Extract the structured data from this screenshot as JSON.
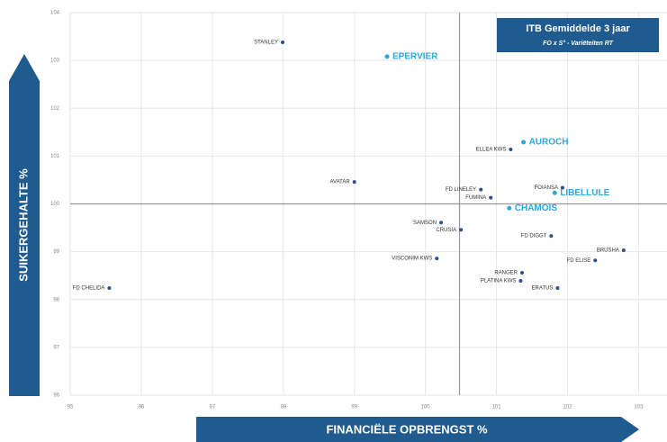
{
  "chart_data": {
    "type": "scatter",
    "title": "ITB Gemiddelde 3 jaar",
    "subtitle": "FO x S° - Variëteiten RT",
    "x_label": "FINANCIËLE OPBRENGST  %",
    "y_label": "SUIKERGEHALTE  %",
    "xlim": [
      95,
      103.4
    ],
    "ylim": [
      96,
      104
    ],
    "xticks": [
      95,
      96,
      97,
      98,
      99,
      100,
      101,
      102,
      103
    ],
    "yticks": [
      96,
      97,
      98,
      99,
      100,
      101,
      102,
      103,
      104
    ],
    "grid": true,
    "reference_lines": {
      "x": 100.48,
      "y": 100
    },
    "color": "#2d4f8e",
    "highlight_color": "#2ea6de",
    "points": [
      {
        "label": "STANLEY",
        "x": 97.99,
        "y": 103.38,
        "highlight": false
      },
      {
        "label": "EPERVIER",
        "x": 99.46,
        "y": 103.08,
        "highlight": true
      },
      {
        "label": "AUROCH",
        "x": 101.38,
        "y": 101.29,
        "highlight": true
      },
      {
        "label": "ELLEA KWS",
        "x": 101.2,
        "y": 101.14,
        "highlight": false
      },
      {
        "label": "AVATAR",
        "x": 99.0,
        "y": 100.46,
        "highlight": false
      },
      {
        "label": "FD LINELEY",
        "x": 100.78,
        "y": 100.3,
        "highlight": false
      },
      {
        "label": "FUMINA",
        "x": 100.92,
        "y": 100.13,
        "highlight": false
      },
      {
        "label": "FOIANSA",
        "x": 101.93,
        "y": 100.34,
        "highlight": false
      },
      {
        "label": "LIBELLULE",
        "x": 101.82,
        "y": 100.23,
        "highlight": true
      },
      {
        "label": "CHAMOIS",
        "x": 101.18,
        "y": 99.91,
        "highlight": true
      },
      {
        "label": "SAMSON",
        "x": 100.22,
        "y": 99.61,
        "highlight": false
      },
      {
        "label": "CRUSIA",
        "x": 100.5,
        "y": 99.46,
        "highlight": false
      },
      {
        "label": "FD DIGGT",
        "x": 101.77,
        "y": 99.33,
        "highlight": false
      },
      {
        "label": "BRUSHA",
        "x": 102.79,
        "y": 99.03,
        "highlight": false
      },
      {
        "label": "FD ELISE",
        "x": 102.39,
        "y": 98.82,
        "highlight": false
      },
      {
        "label": "VISCONIM KWS",
        "x": 100.16,
        "y": 98.86,
        "highlight": false
      },
      {
        "label": "RANGER",
        "x": 101.36,
        "y": 98.56,
        "highlight": false
      },
      {
        "label": "PLATINA KWS",
        "x": 101.34,
        "y": 98.39,
        "highlight": false
      },
      {
        "label": "FD CHELIDA",
        "x": 95.55,
        "y": 98.24,
        "highlight": false
      },
      {
        "label": "ERATUS",
        "x": 101.86,
        "y": 98.24,
        "highlight": false
      }
    ]
  }
}
